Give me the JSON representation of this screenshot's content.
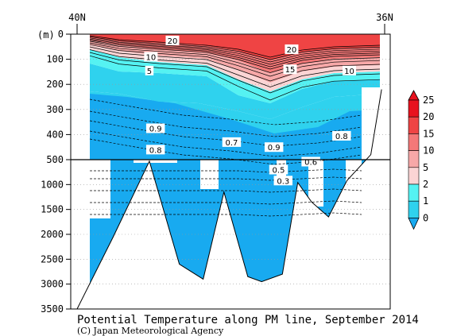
{
  "chart_data": {
    "type": "contour-section",
    "title": "Potential Temperature along PM line, September 2014",
    "credit": "(C) Japan Meteorological Agency",
    "ylabel_unit": "(m)",
    "x_labels": {
      "left": "40N",
      "right": "36N"
    },
    "y_axis": {
      "upper_ticks": [
        0,
        100,
        200,
        300,
        400,
        500
      ],
      "lower_ticks": [
        1000,
        1500,
        2000,
        2500,
        3000,
        3500
      ],
      "upper_range": [
        0,
        500
      ],
      "lower_range": [
        500,
        3500
      ]
    },
    "colorbar": {
      "levels": [
        "25",
        "20",
        "15",
        "10",
        "5",
        "2",
        "1",
        "0"
      ],
      "colors": [
        "#e8121e",
        "#ef4444",
        "#f47878",
        "#f7a8a8",
        "#fbd4d4",
        "#55f2f2",
        "#2fd2ee",
        "#18aaf0"
      ]
    },
    "contour_labels": [
      {
        "text": "20",
        "lat": 38.76,
        "depth": 25
      },
      {
        "text": "20",
        "lat": 37.21,
        "depth": 60
      },
      {
        "text": "10",
        "lat": 39.04,
        "depth": 90
      },
      {
        "text": "5",
        "lat": 39.06,
        "depth": 145
      },
      {
        "text": "15",
        "lat": 37.23,
        "depth": 140
      },
      {
        "text": "10",
        "lat": 36.46,
        "depth": 145
      },
      {
        "text": "0.9",
        "lat": 38.98,
        "depth": 375
      },
      {
        "text": "0.8",
        "lat": 38.98,
        "depth": 460
      },
      {
        "text": "0.7",
        "lat": 37.99,
        "depth": 430
      },
      {
        "text": "0.9",
        "lat": 37.44,
        "depth": 450
      },
      {
        "text": "0.8",
        "lat": 36.56,
        "depth": 405
      },
      {
        "text": "0.6",
        "lat": 36.96,
        "depth": 540
      },
      {
        "text": "0.5",
        "lat": 37.38,
        "depth": 700
      },
      {
        "text": "0.3",
        "lat": 37.32,
        "depth": 920
      }
    ],
    "bottom_profile": [
      {
        "lat": 40.0,
        "depth": 3500
      },
      {
        "lat": 39.53,
        "depth": 2050
      },
      {
        "lat": 39.06,
        "depth": 530
      },
      {
        "lat": 38.67,
        "depth": 2600
      },
      {
        "lat": 38.36,
        "depth": 2900
      },
      {
        "lat": 38.09,
        "depth": 1150
      },
      {
        "lat": 37.78,
        "depth": 2850
      },
      {
        "lat": 37.6,
        "depth": 2950
      },
      {
        "lat": 37.33,
        "depth": 2800
      },
      {
        "lat": 37.13,
        "depth": 960
      },
      {
        "lat": 36.95,
        "depth": 1350
      },
      {
        "lat": 36.73,
        "depth": 1650
      },
      {
        "lat": 36.49,
        "depth": 920
      },
      {
        "lat": 36.18,
        "depth": 480
      },
      {
        "lat": 36.04,
        "depth": 220
      }
    ]
  }
}
